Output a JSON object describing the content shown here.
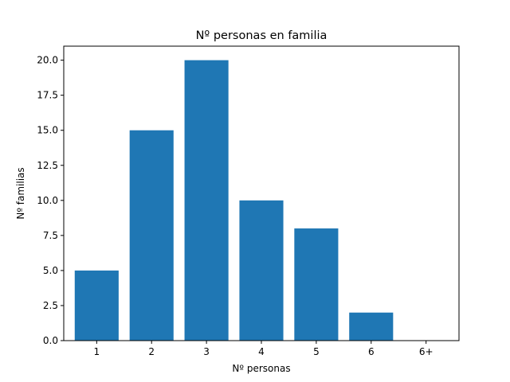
{
  "chart_data": {
    "type": "bar",
    "title": "Nº personas en familia",
    "xlabel": "Nº personas",
    "ylabel": "Nº familias",
    "categories": [
      "1",
      "2",
      "3",
      "4",
      "5",
      "6",
      "6+"
    ],
    "values": [
      5,
      15,
      20,
      10,
      8,
      2,
      0
    ],
    "ylim": [
      0,
      21
    ],
    "yticks": [
      0.0,
      2.5,
      5.0,
      7.5,
      10.0,
      12.5,
      15.0,
      17.5,
      20.0
    ],
    "ytick_labels": [
      "0.0",
      "2.5",
      "5.0",
      "7.5",
      "10.0",
      "12.5",
      "15.0",
      "17.5",
      "20.0"
    ],
    "bar_color": "#1f77b4",
    "grid": false,
    "legend": "none"
  }
}
